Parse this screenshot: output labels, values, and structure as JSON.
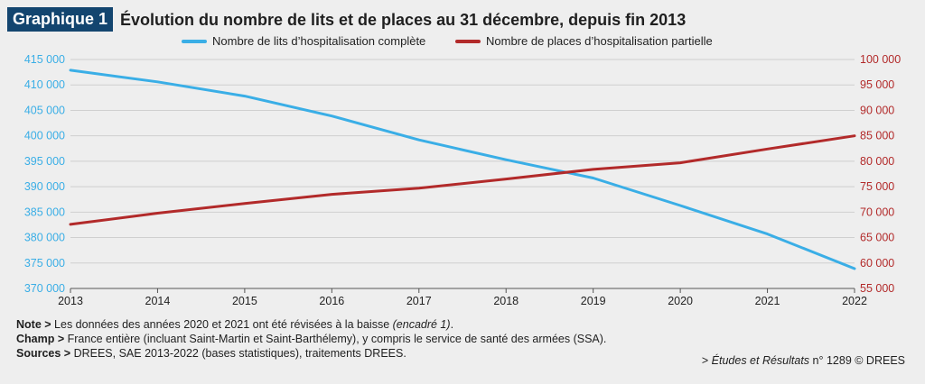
{
  "header": {
    "badge": "Graphique 1",
    "title": "Évolution du nombre de lits et de places au 31 décembre, depuis fin 2013"
  },
  "chart_data": {
    "type": "line",
    "title": "Évolution du nombre de lits et de places au 31 décembre, depuis fin 2013",
    "x": [
      "2013",
      "2014",
      "2015",
      "2016",
      "2017",
      "2018",
      "2019",
      "2020",
      "2021",
      "2022"
    ],
    "series": [
      {
        "name": "Nombre de lits d’hospitalisation complète",
        "axis": "left",
        "color": "#3aaee6",
        "values": [
          412900,
          410600,
          407800,
          403900,
          399200,
          395300,
          391700,
          386300,
          380700,
          373900
        ]
      },
      {
        "name": "Nombre de places d’hospitalisation partielle",
        "axis": "right",
        "color": "#b22a2a",
        "values": [
          67600,
          69800,
          71700,
          73500,
          74700,
          76500,
          78400,
          79700,
          82400,
          85000
        ]
      }
    ],
    "y_left": {
      "min": 370000,
      "max": 415000,
      "ticks": [
        "370 000",
        "375 000",
        "380 000",
        "385 000",
        "390 000",
        "395 000",
        "400 000",
        "405 000",
        "410 000",
        "415 000"
      ],
      "color": "#3aaee6"
    },
    "y_right": {
      "min": 55000,
      "max": 100000,
      "ticks": [
        "55 000",
        "60 000",
        "65 000",
        "70 000",
        "75 000",
        "80 000",
        "85 000",
        "90 000",
        "95 000",
        "100 000"
      ],
      "color": "#b22a2a"
    },
    "grid": true,
    "legend": "top"
  },
  "notes": {
    "note_label": "Note >",
    "note_text": " Les données des années 2020 et 2021 ont été révisées à la baisse ",
    "note_italic": "(encadré 1)",
    "note_end": ".",
    "champ_label": "Champ >",
    "champ_text": " France entière (incluant Saint-Martin et Saint-Barthélemy), y compris le service de santé des armées (SSA).",
    "sources_label": "Sources >",
    "sources_text": " DREES, SAE 2013-2022 (bases statistiques), traitements DREES."
  },
  "credit": {
    "prefix": "> ",
    "italic": "Études et Résultats",
    "rest": " n° 1289 © DREES"
  }
}
